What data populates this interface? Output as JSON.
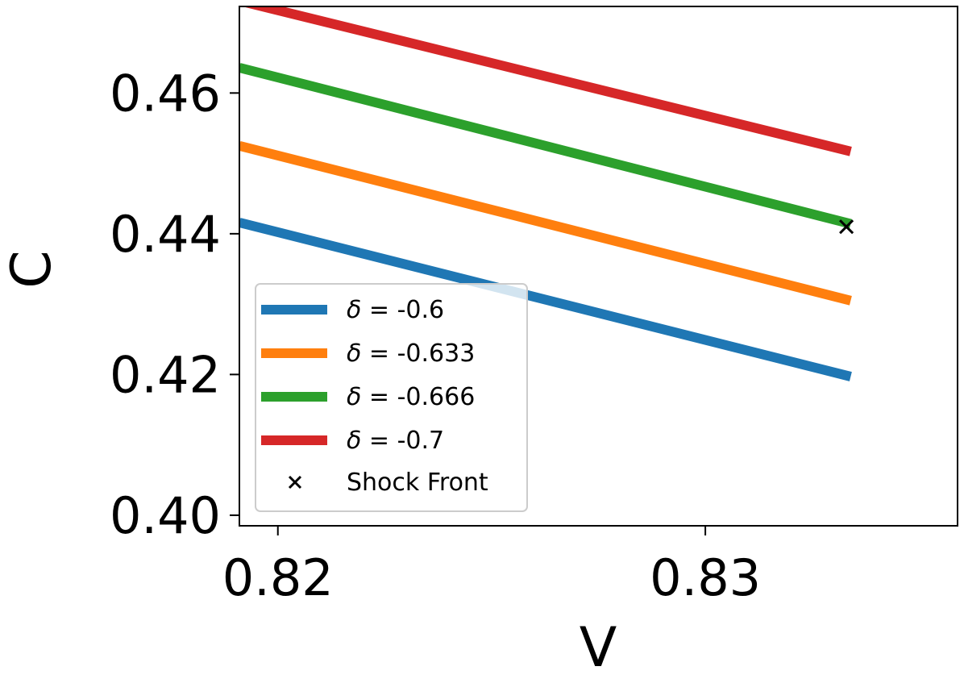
{
  "chart_data": {
    "type": "line",
    "xlabel": "V",
    "ylabel": "C",
    "xlim": [
      0.8191,
      0.8359
    ],
    "ylim": [
      0.3985,
      0.4723
    ],
    "x_ticks": [
      {
        "value": 0.82,
        "label": "0.82"
      },
      {
        "value": 0.83,
        "label": "0.83"
      }
    ],
    "y_ticks": [
      {
        "value": 0.4,
        "label": "0.40"
      },
      {
        "value": 0.42,
        "label": "0.42"
      },
      {
        "value": 0.44,
        "label": "0.44"
      },
      {
        "value": 0.46,
        "label": "0.46"
      }
    ],
    "grid": false,
    "legend_position": "lower-left",
    "series": [
      {
        "name": "δ = -0.6",
        "legend_symbol": "δ",
        "legend_value": "= -0.6",
        "color": "#1f77b4",
        "x": [
          0.8191,
          0.8334
        ],
        "y": [
          0.4416,
          0.4197
        ]
      },
      {
        "name": "δ = -0.633",
        "legend_symbol": "δ",
        "legend_value": "= -0.633",
        "color": "#ff7f0e",
        "x": [
          0.8191,
          0.8334
        ],
        "y": [
          0.4525,
          0.4305
        ]
      },
      {
        "name": "δ = -0.666",
        "legend_symbol": "δ",
        "legend_value": "= -0.666",
        "color": "#2ca02c",
        "x": [
          0.8191,
          0.8334
        ],
        "y": [
          0.4636,
          0.4414
        ]
      },
      {
        "name": "δ = -0.7",
        "legend_symbol": "δ",
        "legend_value": "= -0.7",
        "color": "#d62728",
        "x": [
          0.8191,
          0.8334
        ],
        "y": [
          0.4731,
          0.4517
        ]
      }
    ],
    "markers": [
      {
        "name": "Shock Front",
        "symbol": "x",
        "color": "#000000",
        "x": 0.8333,
        "y": 0.441
      }
    ]
  }
}
